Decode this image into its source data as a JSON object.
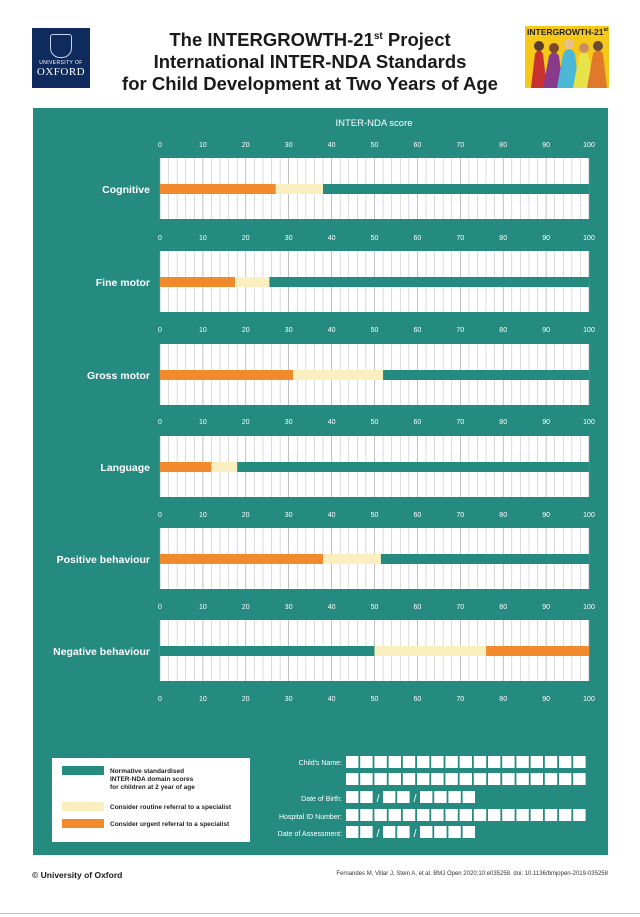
{
  "header": {
    "title_line1": "The INTERGROWTH-21",
    "title_line1_sup": "st",
    "title_line1_end": " Project",
    "title_line2": "International INTER-NDA Standards",
    "title_line3": "for Child Development at Two Years of Age",
    "oxford_small": "UNIVERSITY OF",
    "oxford_big": "OXFORD",
    "ig_logo": "INTERGROWTH-21",
    "ig_logo_sup": "st"
  },
  "chart_data": {
    "type": "bar",
    "orientation": "horizontal",
    "stacked": true,
    "title": "INTER-NDA score",
    "xlim": [
      0,
      100
    ],
    "ticks": [
      0,
      10,
      20,
      30,
      40,
      50,
      60,
      70,
      80,
      90,
      100
    ],
    "categories": [
      "Cognitive",
      "Fine motor",
      "Gross motor",
      "Language",
      "Positive behaviour",
      "Negative behaviour"
    ],
    "series": [
      {
        "name": "Consider urgent referral to a specialist",
        "color": "#f08a2c",
        "ranges": [
          [
            0,
            27
          ],
          [
            0,
            17.5
          ],
          [
            0,
            31
          ],
          [
            0,
            12
          ],
          [
            0,
            38
          ],
          [
            76,
            100
          ]
        ]
      },
      {
        "name": "Consider routine referral to a specialist",
        "color": "#fbefc0",
        "ranges": [
          [
            27,
            38
          ],
          [
            17.5,
            25.5
          ],
          [
            31,
            52
          ],
          [
            12,
            18
          ],
          [
            38,
            51.5
          ],
          [
            50,
            76
          ]
        ]
      },
      {
        "name": "Normative standardised INTER-NDA domain scores for children at 2 year of age",
        "color": "#258a80",
        "ranges": [
          [
            38,
            100
          ],
          [
            25.5,
            100
          ],
          [
            52,
            100
          ],
          [
            18,
            100
          ],
          [
            51.5,
            100
          ],
          [
            0,
            50
          ]
        ]
      }
    ]
  },
  "legend": {
    "items": [
      {
        "color": "#258a80",
        "lines": [
          "Normative standardised",
          "INTER-NDA domain scores",
          "for children at 2 year of age"
        ]
      },
      {
        "color": "#fbefc0",
        "lines": [
          "Consider routine referral to a specialist"
        ]
      },
      {
        "color": "#f08a2c",
        "lines": [
          "Consider urgent referral to a specialist"
        ]
      }
    ]
  },
  "form": {
    "childs_name_label": "Child's Name:",
    "dob_label": "Date of Birth:",
    "hospital_id_label": "Hospital ID Number:",
    "assessment_date_label": "Date of Assessment:",
    "date_separator": "/"
  },
  "footer": {
    "copyright": "© University of Oxford",
    "citation": "Fernandes M, Villar J, Stein A, et al. BMJ Open 2020;10:e035258. doi: 10.1136/bmjopen-2019-035258"
  }
}
